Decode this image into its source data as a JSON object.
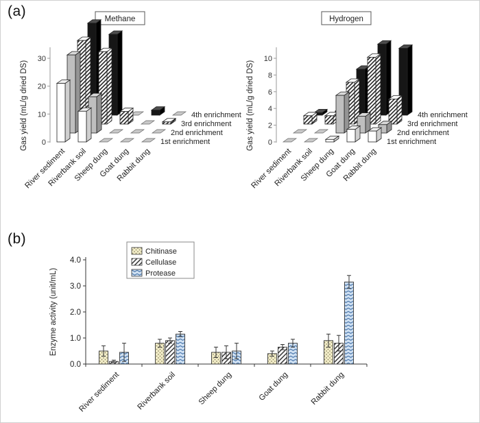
{
  "panels": {
    "a": {
      "label": "(a)"
    },
    "b": {
      "label": "(b)"
    }
  },
  "chart_data": [
    {
      "id": "methane",
      "type": "bar3d",
      "title": "Methane",
      "ylabel": "Gas  yield (mL/g dried DS)",
      "ylim": [
        0,
        30
      ],
      "yticks": [
        0,
        10,
        20,
        30
      ],
      "categories": [
        "River sediment",
        "Riverbank soil",
        "Sheep dung",
        "Goat dung",
        "Rabbit dung"
      ],
      "series": [
        {
          "name": "1st  enrichment",
          "style": "white",
          "values": [
            21,
            11,
            0.2,
            0.2,
            0.2
          ]
        },
        {
          "name": "2nd enrichment",
          "style": "gray",
          "values": [
            28,
            13,
            0.3,
            0.2,
            0.2
          ]
        },
        {
          "name": "3rd enrichment",
          "style": "hatch",
          "values": [
            30,
            26,
            4.5,
            0.4,
            0.8
          ]
        },
        {
          "name": "4th enrichment",
          "style": "black",
          "values": [
            33,
            29,
            0.4,
            1.8,
            0.3
          ]
        }
      ]
    },
    {
      "id": "hydrogen",
      "type": "bar3d",
      "title": "Hydrogen",
      "ylabel": "Gas  yield (mL/g dried DS)",
      "ylim": [
        0,
        10
      ],
      "yticks": [
        0,
        2,
        4,
        6,
        8,
        10
      ],
      "categories": [
        "River sediment",
        "Riverbank soil",
        "Sheep dung",
        "Goat dung",
        "Rabbit dung"
      ],
      "series": [
        {
          "name": "1st  enrichment",
          "style": "white",
          "values": [
            0.1,
            0.1,
            0.3,
            1.5,
            1.3
          ]
        },
        {
          "name": "2nd enrichment",
          "style": "gray",
          "values": [
            0.1,
            0.1,
            4.5,
            2.0,
            1.0
          ]
        },
        {
          "name": "3rd enrichment",
          "style": "hatch",
          "values": [
            1.0,
            1.0,
            5.0,
            8.0,
            3.0
          ]
        },
        {
          "name": "4th enrichment",
          "style": "black",
          "values": [
            0.3,
            0.5,
            5.5,
            8.5,
            8.0
          ]
        }
      ]
    },
    {
      "id": "enzyme",
      "type": "bar",
      "title": "",
      "ylabel": "Enzyme  activity (unit/mL)",
      "ylim": [
        0,
        4
      ],
      "yticks": [
        0,
        1,
        2,
        3,
        4
      ],
      "categories": [
        "River sediment",
        "Riverbank soil",
        "Sheep dung",
        "Goat dung",
        "Rabbit dung"
      ],
      "series": [
        {
          "name": "Chitinase",
          "style": "dots",
          "fill_bg": "#f3eec9",
          "fill_fg": "#8f8868",
          "values": [
            0.5,
            0.8,
            0.45,
            0.4,
            0.9
          ],
          "errors": [
            0.2,
            0.15,
            0.2,
            0.1,
            0.25
          ]
        },
        {
          "name": "Cellulase",
          "style": "hatch",
          "fill_bg": "#ffffff",
          "fill_fg": "#222222",
          "values": [
            0.1,
            0.9,
            0.45,
            0.65,
            0.8
          ],
          "errors": [
            0.05,
            0.1,
            0.25,
            0.1,
            0.3
          ]
        },
        {
          "name": "Protease",
          "style": "chevron",
          "fill_bg": "#cfe0f2",
          "fill_fg": "#4472a8",
          "values": [
            0.45,
            1.15,
            0.5,
            0.8,
            3.15
          ],
          "errors": [
            0.35,
            0.1,
            0.3,
            0.15,
            0.25
          ]
        }
      ]
    }
  ]
}
